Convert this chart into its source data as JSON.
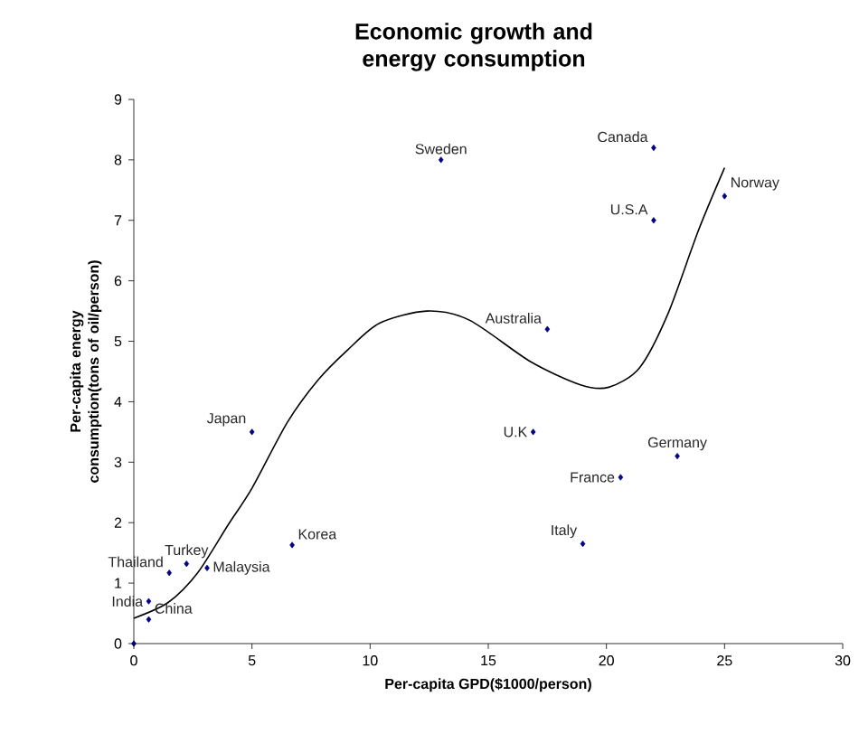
{
  "chart_data": {
    "type": "scatter",
    "title": "Economic growth and energy consumption",
    "xlabel": "Per-capita GPD($1000/person)",
    "ylabel": "Per-capita energy consumption(tons of oil/person)",
    "xlim": [
      0,
      30
    ],
    "xticks": [
      0,
      5,
      10,
      15,
      20,
      25,
      30
    ],
    "ylim": [
      0,
      9
    ],
    "yticks": [
      0,
      1,
      2,
      3,
      4,
      5,
      6,
      7,
      8,
      9
    ],
    "grid": false,
    "series": [
      {
        "marker": "diamond",
        "color": "#000080",
        "x": [
          0,
          0.63,
          0.63,
          1.5,
          2.23,
          3.1,
          6.7,
          5.0,
          13.0,
          22.0,
          22.0,
          25.0,
          17.5,
          16.9,
          23.0,
          20.6,
          19.0
        ],
        "values": [
          0,
          0.7,
          0.4,
          1.17,
          1.32,
          1.25,
          1.63,
          3.5,
          8.0,
          8.2,
          7.0,
          7.4,
          5.2,
          3.5,
          3.1,
          2.75,
          1.65
        ]
      },
      {
        "type": "line",
        "marker": "none",
        "line_style": "solid",
        "color": "#000000",
        "x": [
          0,
          1.45,
          2.7,
          4.0,
          5.0,
          6.5,
          7.8,
          9.06,
          10.4,
          12.4,
          14.2,
          16.8,
          18.9,
          20.1,
          21.4,
          22.6,
          23.9,
          25.0
        ],
        "values": [
          0.42,
          0.68,
          1.17,
          1.97,
          2.57,
          3.66,
          4.36,
          4.86,
          5.3,
          5.5,
          5.35,
          4.66,
          4.28,
          4.24,
          4.56,
          5.45,
          6.84,
          7.87
        ]
      }
    ],
    "annotations": [
      {
        "text": "India",
        "x": 0.63,
        "y": 0.7
      },
      {
        "text": "China",
        "x": 0.63,
        "y": 0.4
      },
      {
        "text": "Thailand",
        "x": 1.5,
        "y": 1.17
      },
      {
        "text": "Turkey",
        "x": 2.23,
        "y": 1.32
      },
      {
        "text": "Malaysia",
        "x": 3.1,
        "y": 1.25
      },
      {
        "text": "Korea",
        "x": 6.7,
        "y": 1.63
      },
      {
        "text": "Japan",
        "x": 5.0,
        "y": 3.5
      },
      {
        "text": "Sweden",
        "x": 13.0,
        "y": 8.0
      },
      {
        "text": "Canada",
        "x": 22.0,
        "y": 8.2
      },
      {
        "text": "U.S.A",
        "x": 22.0,
        "y": 7.0
      },
      {
        "text": "Norway",
        "x": 25.0,
        "y": 7.4
      },
      {
        "text": "Australia",
        "x": 17.5,
        "y": 5.2
      },
      {
        "text": "U.K",
        "x": 16.9,
        "y": 3.5
      },
      {
        "text": "Germany",
        "x": 23.0,
        "y": 3.1
      },
      {
        "text": "France",
        "x": 20.6,
        "y": 2.75
      },
      {
        "text": "Italy",
        "x": 19.0,
        "y": 1.65
      }
    ]
  }
}
